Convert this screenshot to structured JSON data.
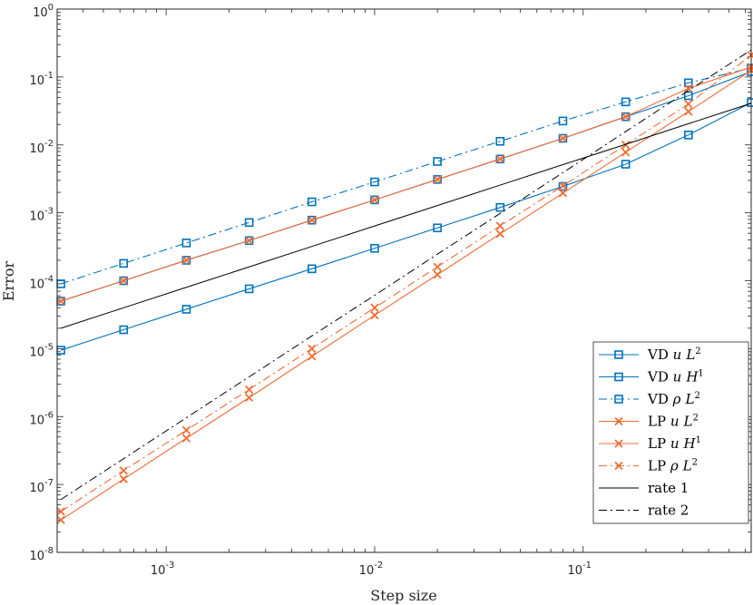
{
  "chart_data": {
    "type": "line",
    "xscale": "log",
    "yscale": "log",
    "xlabel": "Step size",
    "ylabel": "Error",
    "xlim": [
      0.0003,
      0.64
    ],
    "ylim": [
      1e-08,
      1
    ],
    "x_ticks": [
      {
        "base": "10",
        "exp": "-3",
        "value": 0.001
      },
      {
        "base": "10",
        "exp": "-2",
        "value": 0.01
      },
      {
        "base": "10",
        "exp": "-1",
        "value": 0.1
      }
    ],
    "y_ticks": [
      {
        "base": "10",
        "exp": "-8",
        "value": 1e-08
      },
      {
        "base": "10",
        "exp": "-7",
        "value": 1e-07
      },
      {
        "base": "10",
        "exp": "-6",
        "value": 1e-06
      },
      {
        "base": "10",
        "exp": "-5",
        "value": 1e-05
      },
      {
        "base": "10",
        "exp": "-4",
        "value": 0.0001
      },
      {
        "base": "10",
        "exp": "-3",
        "value": 0.001
      },
      {
        "base": "10",
        "exp": "-2",
        "value": 0.01
      },
      {
        "base": "10",
        "exp": "-1",
        "value": 0.1
      },
      {
        "base": "10",
        "exp": "0",
        "value": 1
      }
    ],
    "x": [
      0.0003125,
      0.000625,
      0.00125,
      0.0025,
      0.005,
      0.01,
      0.02,
      0.04,
      0.08,
      0.16,
      0.32,
      0.64
    ],
    "series": [
      {
        "name": "VD u L2",
        "label": {
          "main": "VD ",
          "var": "u",
          "norm": "L",
          "sup": "2"
        },
        "color": "#0072BD",
        "marker": "square",
        "dash": "solid",
        "values": [
          9.5e-06,
          1.9e-05,
          3.8e-05,
          7.6e-05,
          0.00015,
          0.0003,
          0.0006,
          0.0012,
          0.00245,
          0.0052,
          0.014,
          0.042
        ]
      },
      {
        "name": "VD u H1",
        "label": {
          "main": "VD ",
          "var": "u",
          "norm": "H",
          "sup": "1"
        },
        "color": "#0072BD",
        "marker": "square",
        "dash": "solid",
        "values": [
          5e-05,
          0.0001,
          0.0002,
          0.00039,
          0.00078,
          0.00155,
          0.0031,
          0.0062,
          0.0125,
          0.026,
          0.053,
          0.12
        ]
      },
      {
        "name": "VD rho L2",
        "label": {
          "main": "VD ",
          "var": "ρ",
          "norm": "L",
          "sup": "2"
        },
        "color": "#0072BD",
        "marker": "square",
        "dash": "dashdot",
        "values": [
          9e-05,
          0.00018,
          0.00036,
          0.00072,
          0.00145,
          0.00285,
          0.0057,
          0.0113,
          0.0225,
          0.043,
          0.082,
          0.135
        ]
      },
      {
        "name": "LP u L2",
        "label": {
          "main": "LP ",
          "var": "u",
          "norm": "L",
          "sup": "2"
        },
        "color": "#EF6C35",
        "marker": "x",
        "dash": "solid",
        "values": [
          3e-08,
          1.2e-07,
          4.8e-07,
          1.9e-06,
          7.7e-06,
          3.1e-05,
          0.000123,
          0.00049,
          0.00195,
          0.0078,
          0.031,
          0.125
        ]
      },
      {
        "name": "LP u H1",
        "label": {
          "main": "LP ",
          "var": "u",
          "norm": "H",
          "sup": "1"
        },
        "color": "#EF6C35",
        "marker": "x",
        "dash": "solid",
        "values": [
          5e-05,
          0.0001,
          0.0002,
          0.00039,
          0.00078,
          0.00155,
          0.0031,
          0.0062,
          0.0125,
          0.026,
          0.068,
          0.14
        ]
      },
      {
        "name": "LP rho L2",
        "label": {
          "main": "LP ",
          "var": "ρ",
          "norm": "L",
          "sup": "2"
        },
        "color": "#EF6C35",
        "marker": "x",
        "dash": "dashdot",
        "values": [
          4e-08,
          1.6e-07,
          6.3e-07,
          2.5e-06,
          1e-05,
          4e-05,
          0.00016,
          0.00064,
          0.0025,
          0.01,
          0.04,
          0.21
        ]
      },
      {
        "name": "rate 1",
        "label": {
          "main": "rate 1",
          "var": "",
          "norm": "",
          "sup": ""
        },
        "color": "#000000",
        "marker": "none",
        "dash": "solid",
        "values": [
          2e-05,
          4e-05,
          8e-05,
          0.00016,
          0.00032,
          0.00064,
          0.00128,
          0.00256,
          0.00512,
          0.0102,
          0.0205,
          0.041
        ]
      },
      {
        "name": "rate 2",
        "label": {
          "main": "rate 2",
          "var": "",
          "norm": "",
          "sup": ""
        },
        "color": "#000000",
        "marker": "none",
        "dash": "dashdot",
        "values": [
          6e-08,
          2.4e-07,
          9.6e-07,
          3.84e-06,
          1.54e-05,
          6.1e-05,
          0.000246,
          0.00098,
          0.0039,
          0.0157,
          0.063,
          0.25
        ]
      }
    ]
  }
}
